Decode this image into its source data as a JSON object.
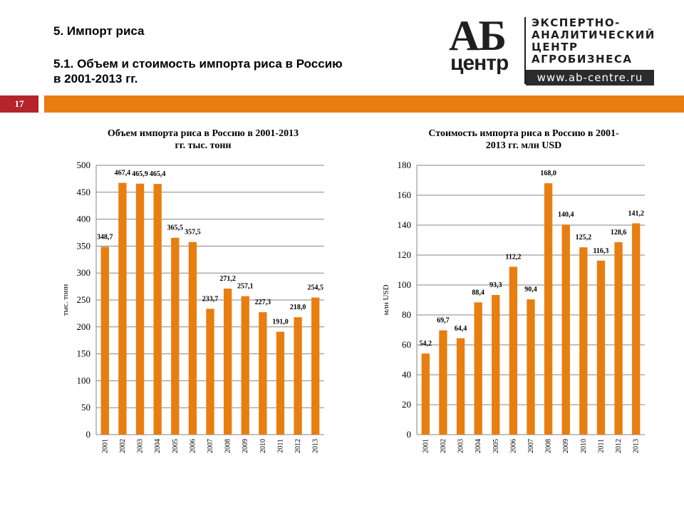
{
  "header": {
    "section_title": "5. Импорт риса",
    "subtitle_line1": "5.1. Объем и стоимость импорта риса в Россию",
    "subtitle_line2": "в 2001-2013 гг."
  },
  "slide_number": "17",
  "logo": {
    "ab": "АБ",
    "centr": "центр",
    "line1": "ЭКСПЕРТНО-",
    "line2": "АНАЛИТИЧЕСКИЙ",
    "line3": "ЦЕНТР",
    "line4": "АГРОБИЗНЕСА",
    "url": "www.ab-centre.ru"
  },
  "colors": {
    "bar": "#E87E0F",
    "accent_red": "#B3242B",
    "grid": "#868686"
  },
  "chart_data": [
    {
      "type": "bar",
      "title_lines": [
        "Объем импорта риса в Россию в 2001-2013",
        "гг. тыс. тонн"
      ],
      "ylabel": "тыс. тонн",
      "xlabel": "",
      "ylim": [
        0,
        500
      ],
      "ytick_step": 50,
      "categories": [
        "2001",
        "2002",
        "2003",
        "2004",
        "2005",
        "2006",
        "2007",
        "2008",
        "2009",
        "2010",
        "2011",
        "2012",
        "2013"
      ],
      "values": [
        348.7,
        467.4,
        465.9,
        465.4,
        365.5,
        357.5,
        233.7,
        271.2,
        257.1,
        227.3,
        191.0,
        218.0,
        254.5
      ],
      "labels": [
        "348,7",
        "467,4",
        "465,9",
        "465,4",
        "365,5",
        "357,5",
        "233,7",
        "271,2",
        "257,1",
        "227,3",
        "191,0",
        "218,0",
        "254,5"
      ],
      "grid": true,
      "legend": "none"
    },
    {
      "type": "bar",
      "title_lines": [
        "Стоимость импорта риса в Россию в 2001-",
        "2013 гг. млн USD"
      ],
      "ylabel": "млн USD",
      "xlabel": "",
      "ylim": [
        0,
        180
      ],
      "ytick_step": 20,
      "categories": [
        "2001",
        "2002",
        "2003",
        "2004",
        "2005",
        "2006",
        "2007",
        "2008",
        "2009",
        "2010",
        "2011",
        "2012",
        "2013"
      ],
      "values": [
        54.2,
        69.7,
        64.4,
        88.4,
        93.3,
        112.2,
        90.4,
        168.0,
        140.4,
        125.2,
        116.3,
        128.6,
        141.2
      ],
      "labels": [
        "54,2",
        "69,7",
        "64,4",
        "88,4",
        "93,3",
        "112,2",
        "90,4",
        "168,0",
        "140,4",
        "125,2",
        "116,3",
        "128,6",
        "141,2"
      ],
      "grid": true,
      "legend": "none"
    }
  ]
}
